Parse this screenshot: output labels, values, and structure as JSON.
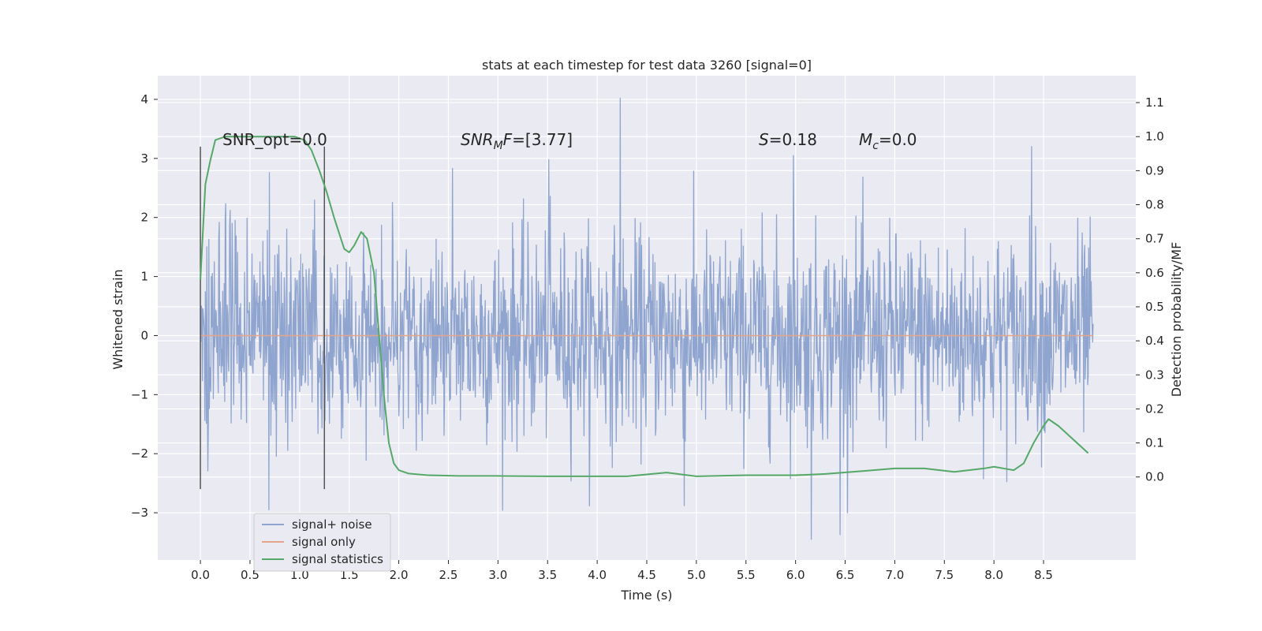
{
  "chart_data": {
    "type": "line",
    "title": "stats at each timestep for test data 3260 [signal=0]",
    "xlabel": "Time (s)",
    "ylabel": "Whitened strain",
    "y2label": "Detection probability/MF",
    "xlim": [
      -0.43,
      9.43
    ],
    "ylim": [
      -3.8,
      4.4
    ],
    "y2lim": [
      -0.244,
      1.179
    ],
    "xticks": [
      0.0,
      0.5,
      1.0,
      1.5,
      2.0,
      2.5,
      3.0,
      3.5,
      4.0,
      4.5,
      5.0,
      5.5,
      6.0,
      6.5,
      7.0,
      7.5,
      8.0,
      8.5
    ],
    "xtick_labels": [
      "0.0",
      "0.5",
      "1.0",
      "1.5",
      "2.0",
      "2.5",
      "3.0",
      "3.5",
      "4.0",
      "4.5",
      "5.0",
      "5.5",
      "6.0",
      "6.5",
      "7.0",
      "7.5",
      "8.0",
      "8.5"
    ],
    "yticks": [
      -3,
      -2,
      -1,
      0,
      1,
      2,
      3,
      4
    ],
    "ytick_labels": [
      "−3",
      "−2",
      "−1",
      "0",
      "1",
      "2",
      "3",
      "4"
    ],
    "y2ticks": [
      0.0,
      0.1,
      0.2,
      0.3,
      0.4,
      0.5,
      0.6,
      0.7,
      0.8,
      0.9,
      1.0,
      1.1
    ],
    "y2tick_labels": [
      "0.0",
      "0.1",
      "0.2",
      "0.3",
      "0.4",
      "0.5",
      "0.6",
      "0.7",
      "0.8",
      "0.9",
      "1.0",
      "1.1"
    ],
    "grid": true,
    "legend_position": "lower-left",
    "series": [
      {
        "name": "signal+ noise",
        "color": "#8fa5cf",
        "axis": "left",
        "description": "dense whitened noise trace, roughly gaussian, range about -3.5 to 4.0",
        "x_range": [
          0.0,
          9.0
        ],
        "noise_std": 0.85,
        "sample_count": 1800,
        "outliers": [
          {
            "x": 4.23,
            "y": 4.02
          },
          {
            "x": 8.38,
            "y": 3.2
          },
          {
            "x": 6.16,
            "y": -3.45
          },
          {
            "x": 6.45,
            "y": -3.37
          },
          {
            "x": 0.69,
            "y": -2.95
          },
          {
            "x": 4.88,
            "y": -2.88
          },
          {
            "x": 2.54,
            "y": 2.83
          },
          {
            "x": 5.98,
            "y": 3.05
          },
          {
            "x": 3.51,
            "y": 2.98
          }
        ]
      },
      {
        "name": "signal only",
        "color": "#e5a58a",
        "axis": "left",
        "x": [
          0.0,
          9.0
        ],
        "y": [
          0.0,
          0.0
        ]
      },
      {
        "name": "signal statistics",
        "color": "#55a868",
        "axis": "right",
        "x": [
          0.0,
          0.05,
          0.1,
          0.15,
          0.25,
          0.5,
          0.75,
          0.95,
          1.05,
          1.12,
          1.2,
          1.27,
          1.35,
          1.45,
          1.5,
          1.55,
          1.62,
          1.68,
          1.75,
          1.8,
          1.85,
          1.9,
          1.95,
          2.0,
          2.1,
          2.3,
          2.6,
          3.0,
          3.5,
          4.0,
          4.3,
          4.7,
          5.0,
          5.5,
          6.0,
          6.3,
          6.7,
          7.0,
          7.3,
          7.6,
          7.9,
          8.0,
          8.1,
          8.2,
          8.3,
          8.4,
          8.5,
          8.55,
          8.65,
          8.8,
          8.95
        ],
        "y": [
          0.58,
          0.86,
          0.93,
          0.99,
          1.0,
          1.0,
          1.0,
          1.0,
          0.99,
          0.96,
          0.9,
          0.84,
          0.76,
          0.67,
          0.66,
          0.68,
          0.72,
          0.7,
          0.6,
          0.42,
          0.24,
          0.1,
          0.04,
          0.02,
          0.01,
          0.005,
          0.003,
          0.003,
          0.002,
          0.002,
          0.002,
          0.013,
          0.002,
          0.005,
          0.005,
          0.009,
          0.018,
          0.025,
          0.025,
          0.015,
          0.025,
          0.03,
          0.025,
          0.02,
          0.04,
          0.1,
          0.15,
          0.17,
          0.15,
          0.11,
          0.07
        ]
      }
    ],
    "vertical_markers": [
      {
        "x": 0.0,
        "y_range": [
          -2.6,
          3.2
        ],
        "color": "#555555"
      },
      {
        "x": 1.25,
        "y_range": [
          -2.6,
          3.2
        ],
        "color": "#555555"
      }
    ],
    "annotations": [
      {
        "id": "snr_opt",
        "text": "SNR_opt=0.0"
      },
      {
        "id": "snr_mf",
        "text": "SNR_MF=[3.77]",
        "math": true
      },
      {
        "id": "s",
        "text": "S=0.18",
        "math": true
      },
      {
        "id": "mc",
        "text": "M_c=0.0",
        "math": true
      }
    ]
  }
}
